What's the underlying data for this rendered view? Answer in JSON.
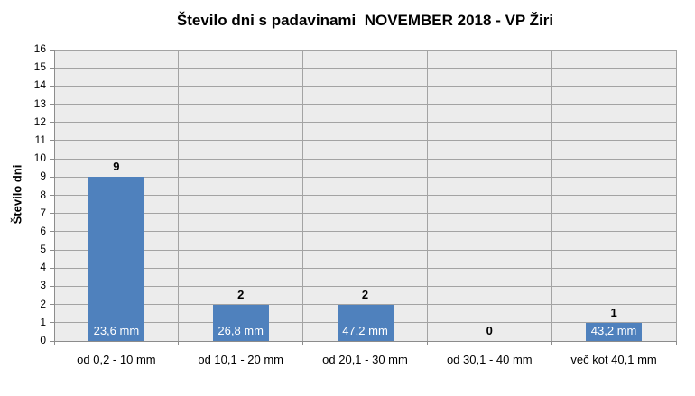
{
  "chart_data": {
    "type": "bar",
    "title": "Število dni s padavinami  NOVEMBER 2018 - VP Žiri",
    "ylabel": "Število dni",
    "xlabel": "",
    "categories": [
      "od 0,2 - 10 mm",
      "od 10,1 - 20 mm",
      "od 20,1 - 30 mm",
      "od 30,1 - 40 mm",
      "več kot 40,1 mm"
    ],
    "values": [
      9,
      2,
      2,
      0,
      1
    ],
    "value_labels": [
      "9",
      "2",
      "2",
      "0",
      "1"
    ],
    "bar_inside_labels": [
      "23,6 mm",
      "26,8 mm",
      "47,2 mm",
      "",
      "43,2 mm"
    ],
    "ylim": [
      0,
      16
    ],
    "ytick_step": 1,
    "grid": "on",
    "legend": "none",
    "bar_color": "#4f81bd",
    "plot_bg_color": "#ececec",
    "grid_color": "#a3a3a3",
    "axis_color": "#8c8c8c",
    "title_color": "#000000",
    "inside_label_color": "#ffffff"
  }
}
